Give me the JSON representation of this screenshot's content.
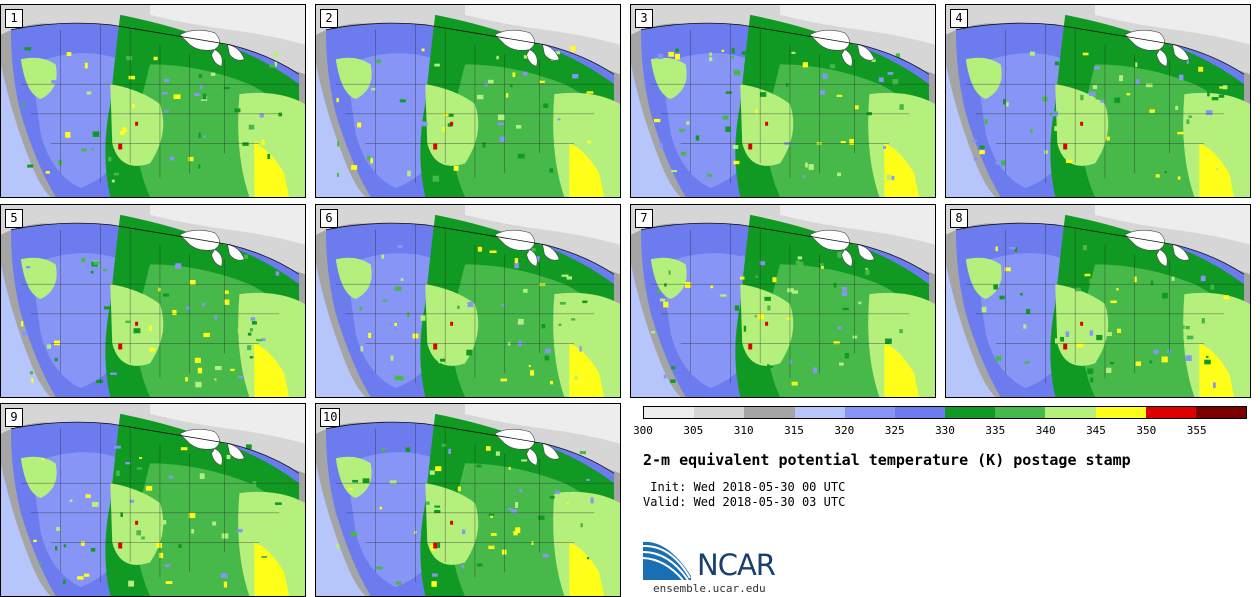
{
  "panels": [
    {
      "label": "1"
    },
    {
      "label": "2"
    },
    {
      "label": "3"
    },
    {
      "label": "4"
    },
    {
      "label": "5"
    },
    {
      "label": "6"
    },
    {
      "label": "7"
    },
    {
      "label": "8"
    },
    {
      "label": "9"
    },
    {
      "label": "10"
    }
  ],
  "colorbar": {
    "colors": [
      "#ededed",
      "#d6d6d6",
      "#a5a5a5",
      "#b6c6fb",
      "#8796f6",
      "#6c7cee",
      "#119a23",
      "#47b94b",
      "#b5f07c",
      "#ffff1a",
      "#dd0000",
      "#7a0000"
    ],
    "ticks": [
      "300",
      "305",
      "310",
      "315",
      "320",
      "325",
      "330",
      "335",
      "340",
      "345",
      "350",
      "355"
    ]
  },
  "title": "2-m equivalent potential temperature (K) postage stamp",
  "init": " Init: Wed 2018-05-30 00 UTC",
  "valid": "Valid: Wed 2018-05-30 03 UTC",
  "logo": {
    "text": "NCAR",
    "url": "ensemble.ucar.edu",
    "accent": "#1a6fb3"
  }
}
